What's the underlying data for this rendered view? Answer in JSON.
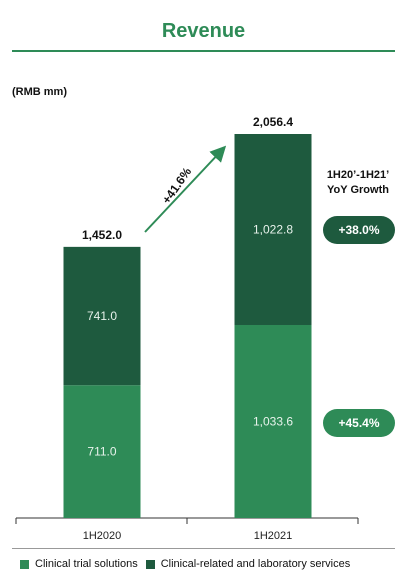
{
  "title": "Revenue",
  "unit_label": "(RMB mm)",
  "yoy_title_line1": "1H20’-1H21’",
  "yoy_title_line2": "YoY Growth",
  "growth_arrow_label": "+41.6%",
  "growth_badges": [
    "+38.0%",
    "+45.4%"
  ],
  "colors": {
    "clinical_trial": "#2e8b57",
    "clinical_related": "#1e5a3e",
    "accent": "#2e8b57"
  },
  "legend": [
    "Clinical trial solutions",
    "Clinical-related and laboratory services"
  ],
  "chart_data": {
    "type": "bar",
    "stacked": true,
    "categories": [
      "1H2020",
      "1H2021"
    ],
    "series": [
      {
        "name": "Clinical trial solutions",
        "values": [
          711.0,
          1033.6
        ],
        "labels": [
          "711.0",
          "1,033.6"
        ]
      },
      {
        "name": "Clinical-related and laboratory services",
        "values": [
          741.0,
          1022.8
        ],
        "labels": [
          "741.0",
          "1,022.8"
        ]
      }
    ],
    "totals": [
      1452.0,
      2056.4
    ],
    "total_labels": [
      "1,452.0",
      "2,056.4"
    ],
    "title": "Revenue",
    "ylabel": "(RMB mm)",
    "ylim": [
      0,
      2056.4
    ],
    "grid": false
  }
}
